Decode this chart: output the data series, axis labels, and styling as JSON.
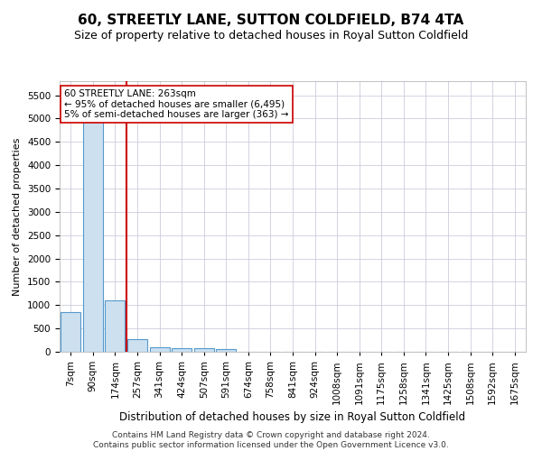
{
  "title": "60, STREETLY LANE, SUTTON COLDFIELD, B74 4TA",
  "subtitle": "Size of property relative to detached houses in Royal Sutton Coldfield",
  "xlabel": "Distribution of detached houses by size in Royal Sutton Coldfield",
  "ylabel": "Number of detached properties",
  "footer_line1": "Contains HM Land Registry data © Crown copyright and database right 2024.",
  "footer_line2": "Contains public sector information licensed under the Open Government Licence v3.0.",
  "categories": [
    "7sqm",
    "90sqm",
    "174sqm",
    "257sqm",
    "341sqm",
    "424sqm",
    "507sqm",
    "591sqm",
    "674sqm",
    "758sqm",
    "841sqm",
    "924sqm",
    "1008sqm",
    "1091sqm",
    "1175sqm",
    "1258sqm",
    "1341sqm",
    "1425sqm",
    "1508sqm",
    "1592sqm",
    "1675sqm"
  ],
  "values": [
    850,
    5500,
    1100,
    275,
    100,
    80,
    80,
    60,
    0,
    0,
    0,
    0,
    0,
    0,
    0,
    0,
    0,
    0,
    0,
    0,
    0
  ],
  "bar_color": "#cce0f0",
  "bar_edge_color": "#5599cc",
  "red_line_index": 3,
  "red_line_color": "#cc0000",
  "annotation_text": "60 STREETLY LANE: 263sqm\n← 95% of detached houses are smaller (6,495)\n5% of semi-detached houses are larger (363) →",
  "annotation_box_color": "#ffffff",
  "annotation_box_edge": "#cc0000",
  "ylim": [
    0,
    5800
  ],
  "yticks": [
    0,
    500,
    1000,
    1500,
    2000,
    2500,
    3000,
    3500,
    4000,
    4500,
    5000,
    5500
  ],
  "title_fontsize": 11,
  "subtitle_fontsize": 9,
  "ylabel_fontsize": 8,
  "xlabel_fontsize": 8.5,
  "tick_fontsize": 7.5,
  "annotation_fontsize": 7.5,
  "footer_fontsize": 6.5,
  "bg_color": "#ffffff",
  "grid_color": "#ccccdd"
}
